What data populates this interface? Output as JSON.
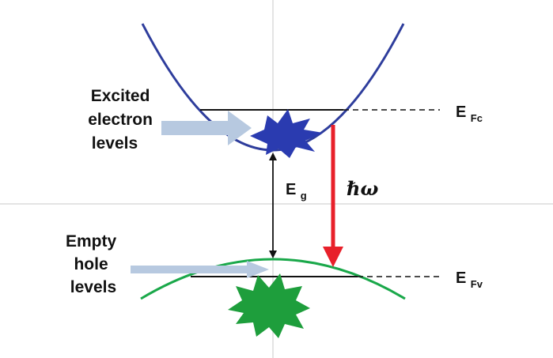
{
  "labels": {
    "excited": [
      "Excited",
      "electron",
      "levels"
    ],
    "empty": [
      "Empty",
      "hole",
      "levels"
    ],
    "efc": {
      "main": "E",
      "sub": "Fc"
    },
    "efv": {
      "main": "E",
      "sub": "Fv"
    },
    "eg": {
      "main": "E",
      "sub": "g"
    },
    "hbar_omega": "ℏω"
  },
  "colors": {
    "conduction_band": "#2e3d9c",
    "valence_band": "#1aa84a",
    "electron_star": "#2a3bb0",
    "hole_star": "#1e9e3c",
    "emission_arrow": "#e8202a",
    "pointer_arrow": "#b7c9e0",
    "axis": "#c8c8c8",
    "level_line": "#111111"
  }
}
